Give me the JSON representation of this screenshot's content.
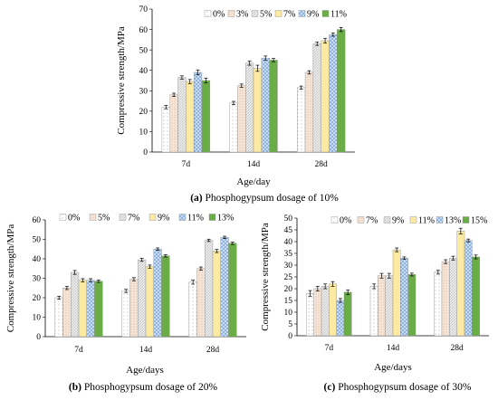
{
  "chart_data": [
    {
      "type": "bar",
      "categories": [
        "7d",
        "14d",
        "28d"
      ],
      "xlabel": "Age/day",
      "ylabel": "Compressive strength/MPa",
      "ylim": [
        0,
        70
      ],
      "yticks": [
        0,
        10,
        20,
        30,
        40,
        50,
        60,
        70
      ],
      "legend_position": "top",
      "caption_letter": "(a)",
      "caption_text": " Phosphogypsum dosage of 10%",
      "series": [
        {
          "name": "0%",
          "values": [
            22,
            24,
            31.5
          ],
          "errors": [
            0.8,
            0.8,
            0.8
          ],
          "style": "dots",
          "color": "#ffffff"
        },
        {
          "name": "3%",
          "values": [
            28,
            32.5,
            39
          ],
          "errors": [
            0.8,
            0.8,
            0.8
          ],
          "style": "dots2",
          "color": "#f7e8dc"
        },
        {
          "name": "5%",
          "values": [
            36.5,
            43.5,
            53
          ],
          "errors": [
            0.8,
            1.0,
            0.8
          ],
          "style": "hatch",
          "color": "#e9e9e9"
        },
        {
          "name": "7%",
          "values": [
            34.5,
            41,
            54.5
          ],
          "errors": [
            1.0,
            1.5,
            1.2
          ],
          "style": "solid",
          "color": "#fdeaa2"
        },
        {
          "name": "9%",
          "values": [
            39,
            46,
            57.5
          ],
          "errors": [
            1.2,
            1.0,
            0.8
          ],
          "style": "check",
          "color": "#c5d9f1"
        },
        {
          "name": "11%",
          "values": [
            35,
            45,
            60
          ],
          "errors": [
            1.2,
            0.8,
            1.0
          ],
          "style": "solid",
          "color": "#6aac46"
        }
      ]
    },
    {
      "type": "bar",
      "categories": [
        "7d",
        "14d",
        "28d"
      ],
      "xlabel": "Age/days",
      "ylabel": "Compressive strength/MPa",
      "ylim": [
        0,
        60
      ],
      "yticks": [
        0,
        10,
        20,
        30,
        40,
        50,
        60
      ],
      "legend_position": "top",
      "caption_letter": "(b)",
      "caption_text": " Phosphogypsum dosage of 20%",
      "series": [
        {
          "name": "0%",
          "values": [
            20,
            23.5,
            28
          ],
          "errors": [
            0.8,
            0.8,
            1.0
          ],
          "style": "dots",
          "color": "#ffffff"
        },
        {
          "name": "5%",
          "values": [
            25,
            29.5,
            35
          ],
          "errors": [
            0.8,
            0.8,
            0.8
          ],
          "style": "dots2",
          "color": "#f7e8dc"
        },
        {
          "name": "7%",
          "values": [
            33,
            39.5,
            49.5
          ],
          "errors": [
            1.0,
            0.8,
            0.6
          ],
          "style": "hatch",
          "color": "#e9e9e9"
        },
        {
          "name": "9%",
          "values": [
            29,
            36,
            44
          ],
          "errors": [
            0.8,
            0.8,
            0.8
          ],
          "style": "solid",
          "color": "#fdeaa2"
        },
        {
          "name": "11%",
          "values": [
            29,
            45,
            51
          ],
          "errors": [
            0.8,
            0.6,
            0.6
          ],
          "style": "check",
          "color": "#c5d9f1"
        },
        {
          "name": "13%",
          "values": [
            28.5,
            41.5,
            48
          ],
          "errors": [
            0.6,
            0.6,
            0.6
          ],
          "style": "solid",
          "color": "#6aac46"
        }
      ]
    },
    {
      "type": "bar",
      "categories": [
        "7d",
        "14d",
        "28d"
      ],
      "xlabel": "Age/days",
      "ylabel": "Compressive strength/MPa",
      "ylim": [
        0,
        50
      ],
      "yticks": [
        0,
        5,
        10,
        15,
        20,
        25,
        30,
        35,
        40,
        45,
        50
      ],
      "legend_position": "top",
      "caption_letter": "(c)",
      "caption_text": " Phosphogypsum dosage of 30%",
      "series": [
        {
          "name": "0%",
          "values": [
            18,
            21,
            27
          ],
          "errors": [
            1.2,
            1.0,
            0.8
          ],
          "style": "dots",
          "color": "#ffffff"
        },
        {
          "name": "7%",
          "values": [
            20,
            25.5,
            31.5
          ],
          "errors": [
            1.0,
            1.0,
            0.8
          ],
          "style": "dots2",
          "color": "#f7e8dc"
        },
        {
          "name": "9%",
          "values": [
            21,
            25.5,
            33
          ],
          "errors": [
            1.0,
            1.0,
            0.8
          ],
          "style": "hatch",
          "color": "#e9e9e9"
        },
        {
          "name": "11%",
          "values": [
            22,
            36.5,
            44.5
          ],
          "errors": [
            1.0,
            0.8,
            1.2
          ],
          "style": "solid",
          "color": "#fdeaa2"
        },
        {
          "name": "13%",
          "values": [
            15,
            33,
            40.5
          ],
          "errors": [
            0.8,
            0.5,
            0.6
          ],
          "style": "check",
          "color": "#c5d9f1"
        },
        {
          "name": "15%",
          "values": [
            18.5,
            26,
            33.5
          ],
          "errors": [
            1.0,
            0.6,
            0.8
          ],
          "style": "solid",
          "color": "#6aac46"
        }
      ]
    }
  ]
}
